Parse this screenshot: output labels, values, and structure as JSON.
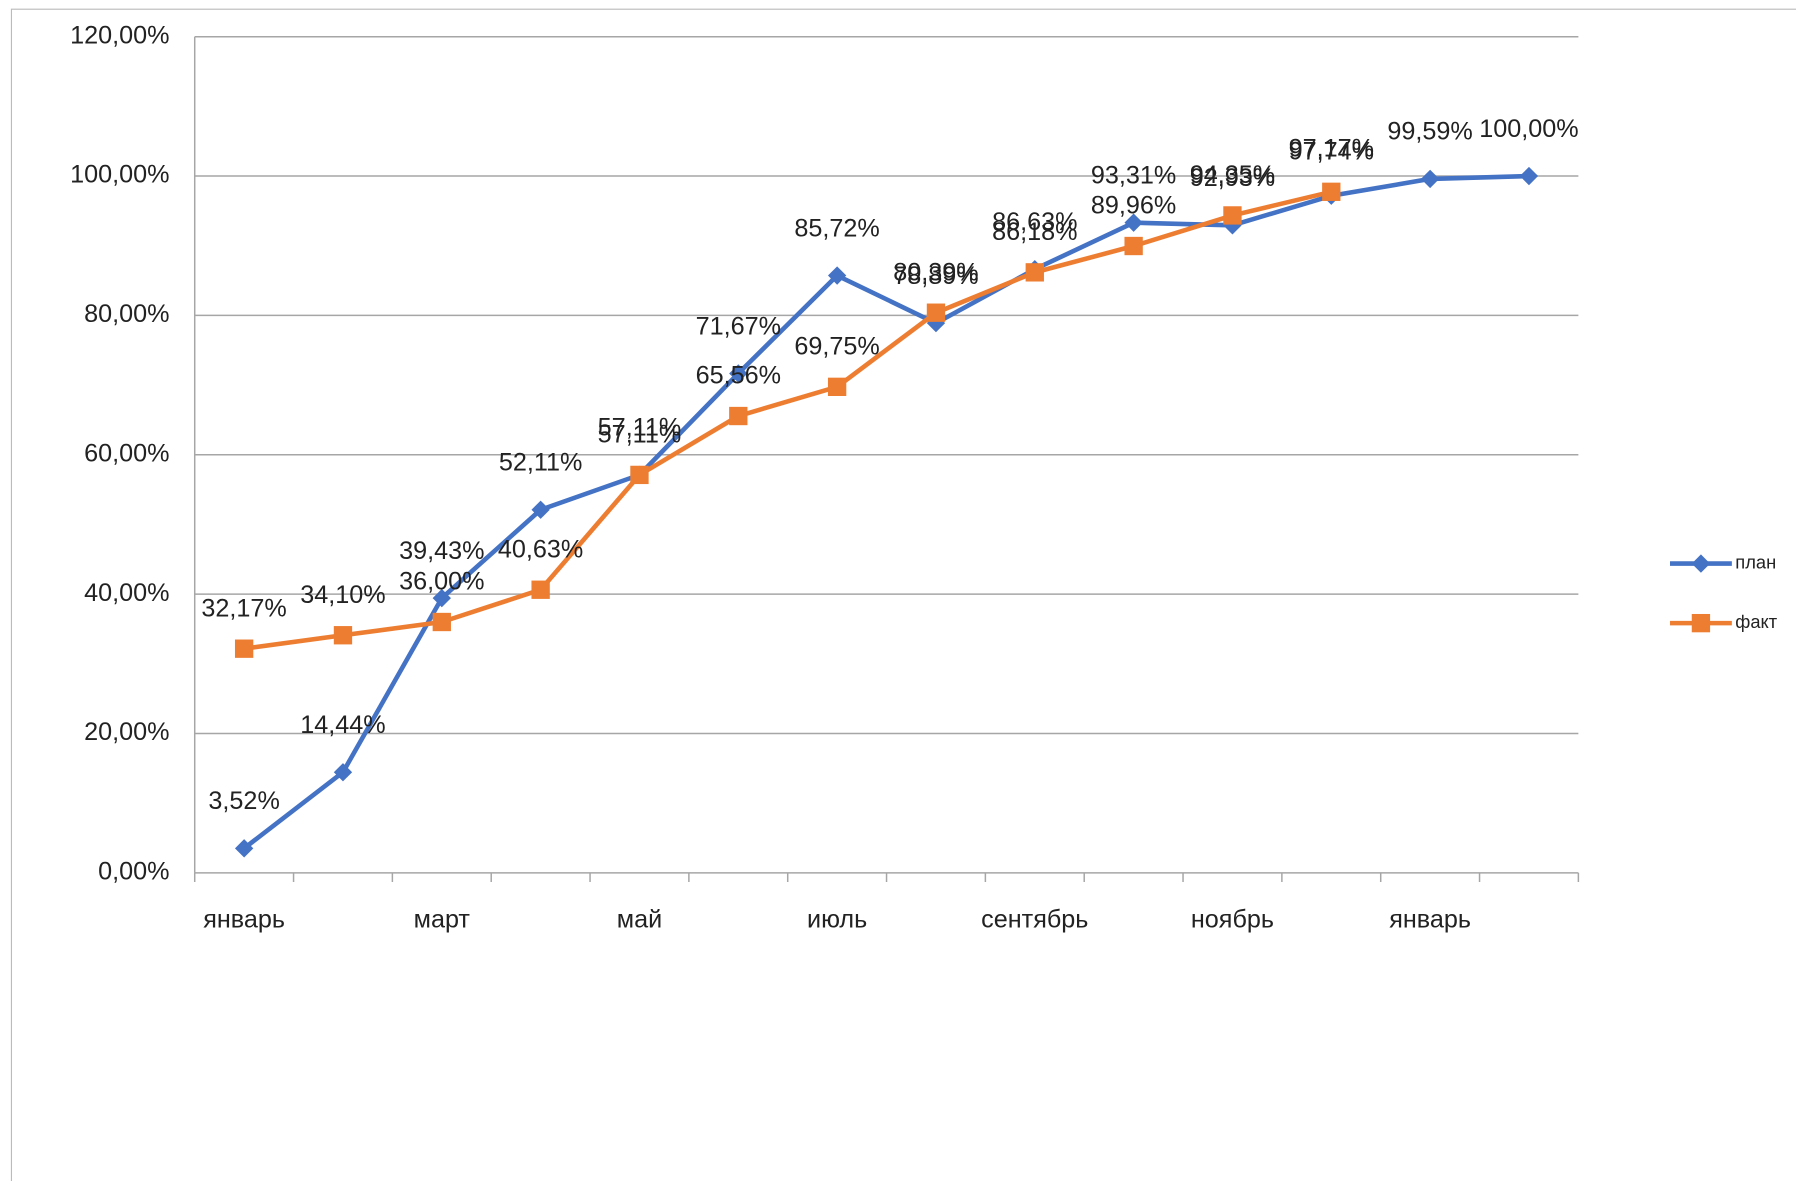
{
  "chart_data": {
    "type": "line",
    "categories": [
      "январь",
      null,
      "март",
      null,
      "май",
      null,
      "июль",
      null,
      "сентябрь",
      null,
      "ноябрь",
      null,
      "январь",
      null
    ],
    "series": [
      {
        "name": "план",
        "color": "#4472c4",
        "marker": "diamond",
        "values": [
          3.52,
          14.44,
          39.43,
          52.11,
          57.11,
          71.67,
          85.72,
          78.89,
          86.63,
          93.31,
          92.93,
          97.17,
          99.59,
          100.0
        ],
        "value_labels": [
          "3,52%",
          "14,44%",
          "39,43%",
          "52,11%",
          "57,11%",
          "71,67%",
          "85,72%",
          "78,89%",
          "86,63%",
          "93,31%",
          "92,93%",
          "97,17%",
          "99,59%",
          "100,00%"
        ]
      },
      {
        "name": "факт",
        "color": "#ed7d31",
        "marker": "square",
        "values": [
          32.17,
          34.1,
          36.0,
          40.63,
          57.11,
          65.56,
          69.75,
          80.39,
          86.18,
          89.96,
          94.35,
          97.74,
          null,
          null
        ],
        "value_labels": [
          "32,17%",
          "34,10%",
          "36,00%",
          "40,63%",
          "57,11%",
          "65,56%",
          "69,75%",
          "80,39%",
          "86,18%",
          "89,96%",
          "94,35%",
          "97,74%",
          null,
          null
        ]
      }
    ],
    "ylim": [
      0,
      120
    ],
    "yticks": [
      {
        "value": 0,
        "label": "0,00%"
      },
      {
        "value": 20,
        "label": "20,00%"
      },
      {
        "value": 40,
        "label": "40,00%"
      },
      {
        "value": 60,
        "label": "60,00%"
      },
      {
        "value": 80,
        "label": "80,00%"
      },
      {
        "value": 100,
        "label": "100,00%"
      },
      {
        "value": 120,
        "label": "120,00%"
      }
    ],
    "grid": true,
    "legend": "right"
  }
}
